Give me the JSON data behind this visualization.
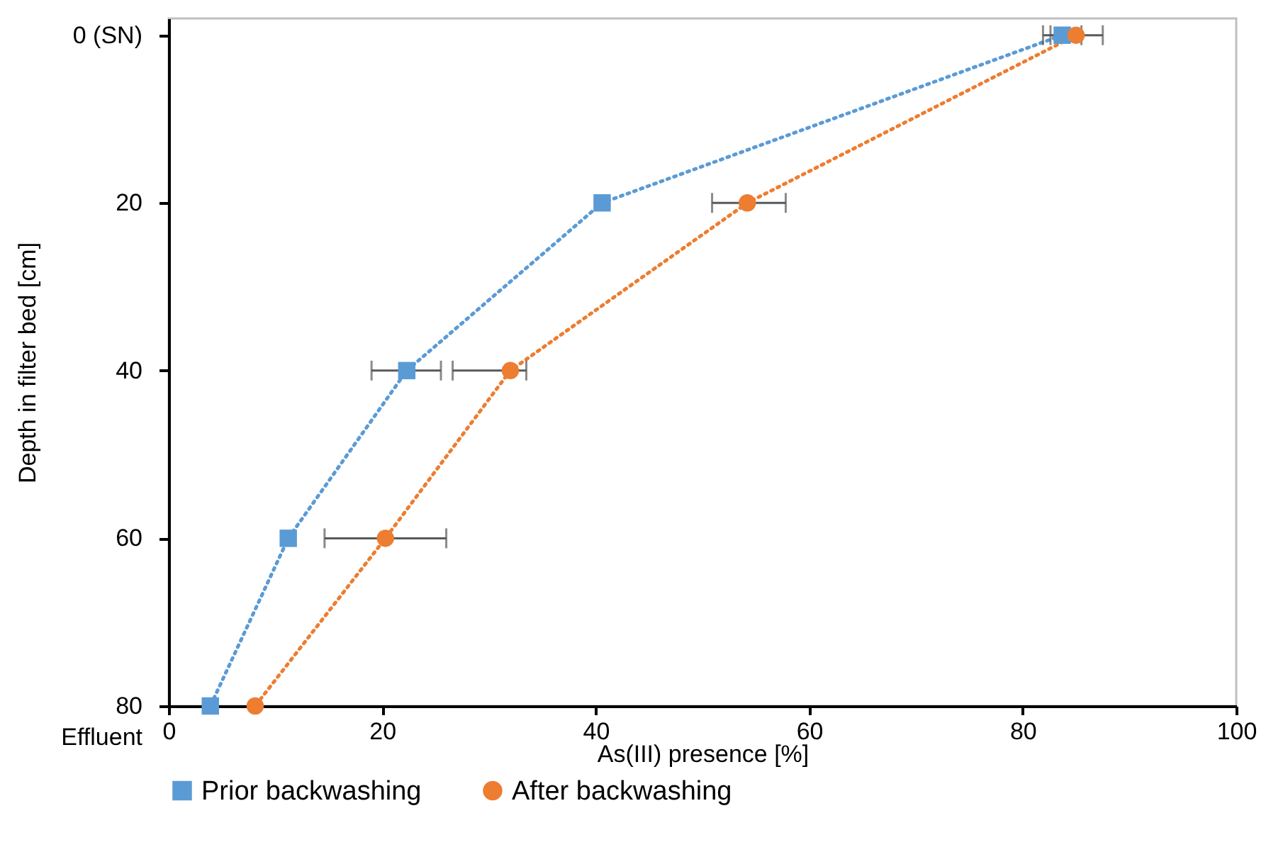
{
  "chart_data": {
    "type": "line",
    "xlabel": "As(III) presence [%]",
    "ylabel": "Depth  in filter bed [cm]",
    "xlim": [
      0,
      100
    ],
    "xticks": [
      0,
      20,
      40,
      60,
      80,
      100
    ],
    "ylim": [
      80,
      -2
    ],
    "yticks": [
      {
        "value": 0,
        "label": "0 (SN)"
      },
      20,
      40,
      60,
      {
        "value": 80,
        "label": "80\nEffluent"
      }
    ],
    "grid": false,
    "legend": "bottom",
    "line_style": "dotted",
    "series": [
      {
        "name": "Prior backwashing",
        "color": "#5b9bd5",
        "marker": "square",
        "x": [
          83.7,
          40.6,
          22.3,
          11.2,
          3.9
        ],
        "values": [
          0,
          20,
          40,
          60,
          80
        ],
        "xerrors": [
          [
            81.9,
            85.5
          ],
          null,
          [
            19.0,
            25.5
          ],
          null,
          null
        ]
      },
      {
        "name": "After backwashing",
        "color": "#ed7d31",
        "marker": "circle",
        "x": [
          85.0,
          54.2,
          32.0,
          20.3,
          8.1
        ],
        "values": [
          0,
          20,
          40,
          60,
          80
        ],
        "xerrors": [
          [
            82.6,
            87.5
          ],
          [
            50.9,
            57.8
          ],
          [
            26.6,
            33.5
          ],
          [
            14.6,
            26.0
          ],
          null
        ]
      }
    ]
  }
}
